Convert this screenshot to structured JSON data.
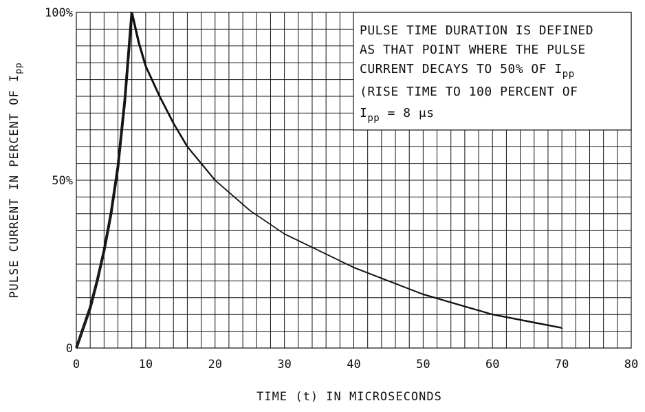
{
  "chart_data": {
    "type": "line",
    "title": "",
    "xlabel": "TIME (t) IN MICROSECONDS",
    "ylabel": "PULSE CURRENT IN PERCENT OF I",
    "ylabel_subscript": "pp",
    "xlim": [
      0,
      80
    ],
    "ylim": [
      0,
      100
    ],
    "grid": true,
    "grid_x_step": 2,
    "grid_y_step": 5,
    "x_ticks": [
      {
        "value": 0,
        "label": "0"
      },
      {
        "value": 10,
        "label": "10"
      },
      {
        "value": 20,
        "label": "20"
      },
      {
        "value": 30,
        "label": "30"
      },
      {
        "value": 40,
        "label": "40"
      },
      {
        "value": 50,
        "label": "50"
      },
      {
        "value": 60,
        "label": "60"
      },
      {
        "value": 70,
        "label": "70"
      },
      {
        "value": 80,
        "label": "80"
      }
    ],
    "y_ticks": [
      {
        "value": 0,
        "label": "0"
      },
      {
        "value": 50,
        "label": "50%"
      },
      {
        "value": 100,
        "label": "100%"
      }
    ],
    "series": [
      {
        "x": [
          0,
          1,
          2,
          3,
          4,
          5,
          6,
          7,
          8,
          9,
          10,
          12,
          14,
          16,
          18,
          20,
          25,
          30,
          35,
          40,
          45,
          50,
          55,
          60,
          65,
          70
        ],
        "y": [
          0,
          6,
          12,
          20,
          29,
          40,
          54,
          74,
          100,
          91,
          84,
          75,
          67,
          60,
          55,
          50,
          41,
          34,
          29,
          24,
          20,
          16,
          13,
          10,
          8,
          6
        ]
      }
    ],
    "annotation": {
      "location": "top-right",
      "lines": [
        {
          "text": "PULSE TIME DURATION IS DEFINED",
          "sub": ""
        },
        {
          "text": "AS THAT POINT WHERE THE PULSE",
          "sub": ""
        },
        {
          "text": "CURRENT DECAYS TO 50% OF I",
          "sub": "pp"
        },
        {
          "text": "(RISE TIME TO 100 PERCENT OF",
          "sub": ""
        },
        {
          "text": "I",
          "sub": "pp",
          "suffix": " = 8 μs"
        }
      ]
    }
  }
}
